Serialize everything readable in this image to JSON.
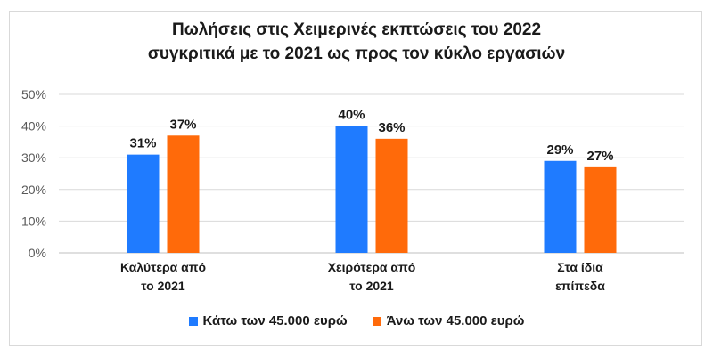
{
  "chart_data": {
    "type": "bar",
    "title_lines": [
      "Πωλήσεις στις Χειμερινές εκπτώσεις του 2022",
      "συγκριτικά με το 2021 ως προς τον κύκλο εργασιών"
    ],
    "categories": [
      [
        "Καλύτερα από",
        "το 2021"
      ],
      [
        "Χειρότερα από",
        "το 2021"
      ],
      [
        "Στα ίδια",
        "επίπεδα"
      ]
    ],
    "series": [
      {
        "name": "Κάτω των 45.000 ευρώ",
        "values": [
          31,
          40,
          29
        ],
        "color": "#1f7bff"
      },
      {
        "name": "Άνω των 45.000 ευρώ",
        "values": [
          37,
          36,
          27
        ],
        "color": "#ff6a0a"
      }
    ],
    "ylim": [
      0,
      50
    ],
    "yticks": [
      "0%",
      "10%",
      "20%",
      "30%",
      "40%",
      "50%"
    ],
    "value_suffix": "%",
    "grid": true,
    "legend_position": "bottom"
  }
}
